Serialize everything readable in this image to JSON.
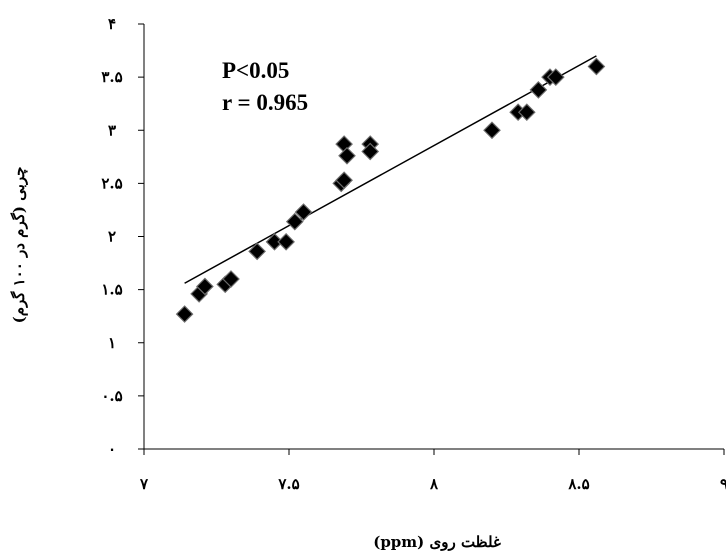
{
  "chart_data": {
    "type": "scatter",
    "xlabel": "غلظت روی (ppm)",
    "ylabel": "چربی (گرم در ۱۰۰ گرم)",
    "xlim": [
      7,
      9
    ],
    "ylim": [
      0,
      4
    ],
    "x_ticks": [
      7,
      7.5,
      8,
      8.5,
      9
    ],
    "x_tick_labels": [
      "۷",
      "۷.۵",
      "۸",
      "۸.۵",
      "۹"
    ],
    "y_ticks": [
      0,
      0.5,
      1,
      1.5,
      2,
      2.5,
      3,
      3.5,
      4
    ],
    "y_tick_labels": [
      "۰",
      "۰.۵",
      "۱",
      "۱.۵",
      "۲",
      "۲.۵",
      "۳",
      "۳.۵",
      "۴"
    ],
    "grid": false,
    "marker": "diamond",
    "marker_color": "#000000",
    "annotations": [
      "P<0.05",
      "r = 0.965"
    ],
    "points": [
      {
        "x": 7.14,
        "y": 1.27
      },
      {
        "x": 7.19,
        "y": 1.46
      },
      {
        "x": 7.21,
        "y": 1.53
      },
      {
        "x": 7.28,
        "y": 1.55
      },
      {
        "x": 7.3,
        "y": 1.6
      },
      {
        "x": 7.39,
        "y": 1.86
      },
      {
        "x": 7.45,
        "y": 1.95
      },
      {
        "x": 7.49,
        "y": 1.95
      },
      {
        "x": 7.52,
        "y": 2.14
      },
      {
        "x": 7.55,
        "y": 2.23
      },
      {
        "x": 7.68,
        "y": 2.5
      },
      {
        "x": 7.69,
        "y": 2.87
      },
      {
        "x": 7.69,
        "y": 2.53
      },
      {
        "x": 7.7,
        "y": 2.76
      },
      {
        "x": 7.78,
        "y": 2.87
      },
      {
        "x": 7.78,
        "y": 2.8
      },
      {
        "x": 8.2,
        "y": 3.0
      },
      {
        "x": 8.29,
        "y": 3.17
      },
      {
        "x": 8.32,
        "y": 3.17
      },
      {
        "x": 8.36,
        "y": 3.38
      },
      {
        "x": 8.4,
        "y": 3.5
      },
      {
        "x": 8.42,
        "y": 3.5
      },
      {
        "x": 8.56,
        "y": 3.6
      }
    ],
    "trendline": {
      "x": [
        7.14,
        8.56
      ],
      "y": [
        1.56,
        3.7
      ]
    }
  }
}
